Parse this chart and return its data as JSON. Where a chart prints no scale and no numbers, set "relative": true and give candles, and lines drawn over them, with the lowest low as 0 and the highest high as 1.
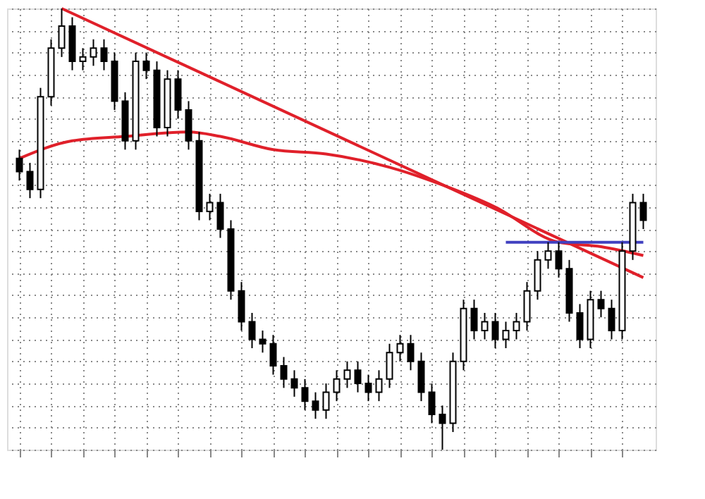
{
  "chart_data": {
    "type": "candlestick",
    "relative": true,
    "grid": true,
    "legend": false,
    "tick_labels": false,
    "categories": [
      null,
      null,
      null,
      null,
      null,
      null,
      null,
      null,
      null,
      null,
      null,
      null,
      null,
      null,
      null,
      null,
      null,
      null,
      null,
      null,
      null,
      null,
      null,
      null,
      null,
      null,
      null,
      null,
      null,
      null,
      null,
      null,
      null,
      null,
      null,
      null,
      null,
      null,
      null,
      null,
      null,
      null,
      null,
      null,
      null,
      null,
      null,
      null,
      null,
      null,
      null,
      null,
      null,
      null,
      null,
      null,
      null,
      null,
      null,
      null
    ],
    "series": [
      {
        "type": "line",
        "color": "#e0202a",
        "values": [
          null,
          null,
          null,
          null,
          1,
          null,
          null,
          null,
          null,
          null,
          null,
          null,
          null,
          null,
          null,
          null,
          null,
          null,
          null,
          null,
          null,
          null,
          null,
          null,
          null,
          null,
          null,
          null,
          null,
          null,
          null,
          null,
          null,
          null,
          null,
          null,
          null,
          null,
          null,
          null,
          null,
          null,
          null,
          null,
          null,
          null,
          null,
          null,
          null,
          null,
          null,
          null,
          null,
          null,
          null,
          null,
          null,
          null,
          null,
          0.39
        ]
      },
      {
        "type": "line",
        "color": "#e0202a",
        "values": [
          0.66,
          null,
          null,
          null,
          null,
          0.7,
          null,
          null,
          null,
          null,
          0.71,
          null,
          null,
          null,
          null,
          null,
          0.72,
          null,
          null,
          0.71,
          null,
          null,
          null,
          null,
          0.68,
          null,
          null,
          null,
          null,
          0.67,
          null,
          null,
          null,
          null,
          null,
          0.64,
          null,
          null,
          null,
          null,
          0.6,
          null,
          null,
          null,
          null,
          0.55,
          null,
          null,
          null,
          null,
          null,
          0.47,
          null,
          null,
          null,
          0.46,
          null,
          null,
          null,
          0.44
        ]
      },
      {
        "type": "line",
        "color": "#4040c0",
        "values": [
          null,
          null,
          null,
          null,
          null,
          null,
          null,
          null,
          null,
          null,
          null,
          null,
          null,
          null,
          null,
          null,
          null,
          null,
          null,
          null,
          null,
          null,
          null,
          null,
          null,
          null,
          null,
          null,
          null,
          null,
          null,
          null,
          null,
          null,
          null,
          null,
          null,
          null,
          null,
          null,
          null,
          null,
          null,
          null,
          null,
          null,
          0.47,
          null,
          null,
          null,
          null,
          null,
          null,
          null,
          null,
          null,
          null,
          null,
          null,
          0.47
        ]
      },
      {
        "color": "#000000",
        "ohlc": [
          [
            0.66,
            0.68,
            0.61,
            0.63
          ],
          [
            0.63,
            0.65,
            0.57,
            0.59
          ],
          [
            0.59,
            0.82,
            0.57,
            0.8
          ],
          [
            0.8,
            0.93,
            0.78,
            0.91
          ],
          [
            0.91,
            1,
            0.89,
            0.96
          ],
          [
            0.96,
            0.98,
            0.86,
            0.88
          ],
          [
            0.88,
            0.91,
            0.86,
            0.89
          ],
          [
            0.89,
            0.93,
            0.87,
            0.91
          ],
          [
            0.91,
            0.93,
            0.86,
            0.88
          ],
          [
            0.88,
            0.9,
            0.77,
            0.79
          ],
          [
            0.79,
            0.81,
            0.68,
            0.7
          ],
          [
            0.7,
            0.9,
            0.68,
            0.88
          ],
          [
            0.88,
            0.9,
            0.84,
            0.86
          ],
          [
            0.86,
            0.88,
            0.71,
            0.73
          ],
          [
            0.73,
            0.86,
            0.71,
            0.84
          ],
          [
            0.84,
            0.86,
            0.75,
            0.77
          ],
          [
            0.77,
            0.79,
            0.68,
            0.7
          ],
          [
            0.7,
            0.72,
            0.52,
            0.54
          ],
          [
            0.54,
            0.58,
            0.52,
            0.56
          ],
          [
            0.56,
            0.58,
            0.48,
            0.5
          ],
          [
            0.5,
            0.52,
            0.34,
            0.36
          ],
          [
            0.36,
            0.38,
            0.27,
            0.29
          ],
          [
            0.29,
            0.31,
            0.23,
            0.25
          ],
          [
            0.25,
            0.27,
            0.22,
            0.24
          ],
          [
            0.24,
            0.26,
            0.17,
            0.19
          ],
          [
            0.19,
            0.21,
            0.14,
            0.16
          ],
          [
            0.16,
            0.18,
            0.12,
            0.14
          ],
          [
            0.14,
            0.16,
            0.09,
            0.11
          ],
          [
            0.11,
            0.13,
            0.07,
            0.09
          ],
          [
            0.09,
            0.15,
            0.07,
            0.13
          ],
          [
            0.13,
            0.18,
            0.11,
            0.16
          ],
          [
            0.16,
            0.2,
            0.14,
            0.18
          ],
          [
            0.18,
            0.2,
            0.13,
            0.15
          ],
          [
            0.15,
            0.17,
            0.11,
            0.13
          ],
          [
            0.13,
            0.18,
            0.11,
            0.16
          ],
          [
            0.16,
            0.24,
            0.14,
            0.22
          ],
          [
            0.22,
            0.26,
            0.2,
            0.24
          ],
          [
            0.24,
            0.26,
            0.18,
            0.2
          ],
          [
            0.2,
            0.22,
            0.11,
            0.13
          ],
          [
            0.13,
            0.15,
            0.06,
            0.08
          ],
          [
            0.08,
            0.1,
            0,
            0.06
          ],
          [
            0.06,
            0.22,
            0.04,
            0.2
          ],
          [
            0.2,
            0.34,
            0.18,
            0.32
          ],
          [
            0.32,
            0.34,
            0.25,
            0.27
          ],
          [
            0.27,
            0.31,
            0.25,
            0.29
          ],
          [
            0.29,
            0.31,
            0.23,
            0.25
          ],
          [
            0.25,
            0.29,
            0.23,
            0.27
          ],
          [
            0.27,
            0.31,
            0.25,
            0.29
          ],
          [
            0.29,
            0.38,
            0.27,
            0.36
          ],
          [
            0.36,
            0.45,
            0.34,
            0.43
          ],
          [
            0.43,
            0.47,
            0.41,
            0.45
          ],
          [
            0.45,
            0.47,
            0.39,
            0.41
          ],
          [
            0.41,
            0.43,
            0.29,
            0.31
          ],
          [
            0.31,
            0.33,
            0.23,
            0.25
          ],
          [
            0.25,
            0.36,
            0.23,
            0.34
          ],
          [
            0.34,
            0.36,
            0.3,
            0.32
          ],
          [
            0.32,
            0.34,
            0.25,
            0.27
          ],
          [
            0.27,
            0.47,
            0.25,
            0.45
          ],
          [
            0.45,
            0.58,
            0.43,
            0.56
          ],
          [
            0.56,
            0.58,
            0.5,
            0.52
          ]
        ]
      }
    ]
  }
}
